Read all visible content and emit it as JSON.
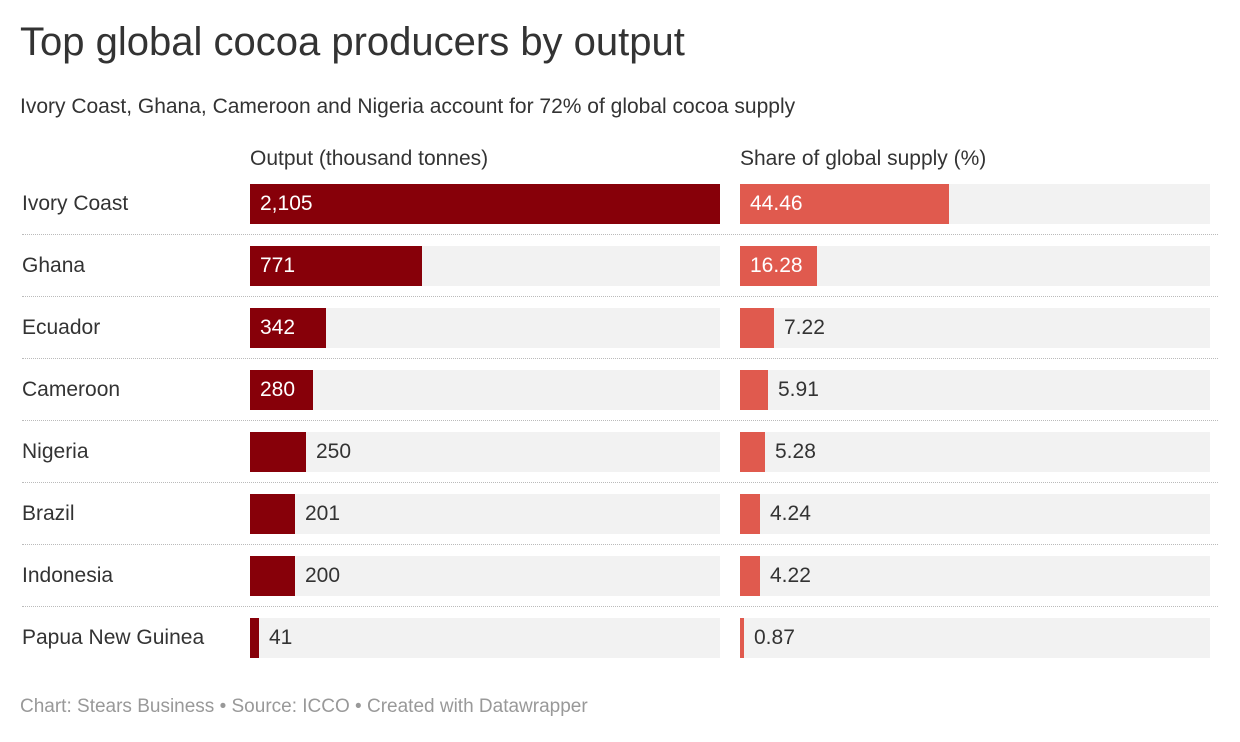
{
  "header": {
    "title": "Top global cocoa producers by output",
    "subtitle": "Ivory Coast, Ghana, Cameroon and Nigeria account for 72% of global cocoa supply"
  },
  "footer": {
    "credit": "Chart: Stears Business • Source: ICCO • Created with Datawrapper"
  },
  "colors": {
    "output_bar": "#870009",
    "share_bar": "#e05a4e",
    "track": "#f2f2f2"
  },
  "chart_data": {
    "type": "bar",
    "title": "Top global cocoa producers by output",
    "subtitle": "Ivory Coast, Ghana, Cameroon and Nigeria account for 72% of global cocoa supply",
    "categories": [
      "Ivory Coast",
      "Ghana",
      "Ecuador",
      "Cameroon",
      "Nigeria",
      "Brazil",
      "Indonesia",
      "Papua New Guinea"
    ],
    "series": [
      {
        "name": "Output (thousand tonnes)",
        "values": [
          2105,
          771,
          342,
          280,
          250,
          201,
          200,
          41
        ],
        "labels": [
          "2,105",
          "771",
          "342",
          "280",
          "250",
          "201",
          "200",
          "41"
        ],
        "max": 2105
      },
      {
        "name": "Share of global supply (%)",
        "values": [
          44.46,
          16.28,
          7.22,
          5.91,
          5.28,
          4.24,
          4.22,
          0.87
        ],
        "labels": [
          "44.46",
          "16.28",
          "7.22",
          "5.91",
          "5.28",
          "4.24",
          "4.22",
          "0.87"
        ],
        "max": 100
      }
    ],
    "orientation": "horizontal",
    "grid": false
  }
}
